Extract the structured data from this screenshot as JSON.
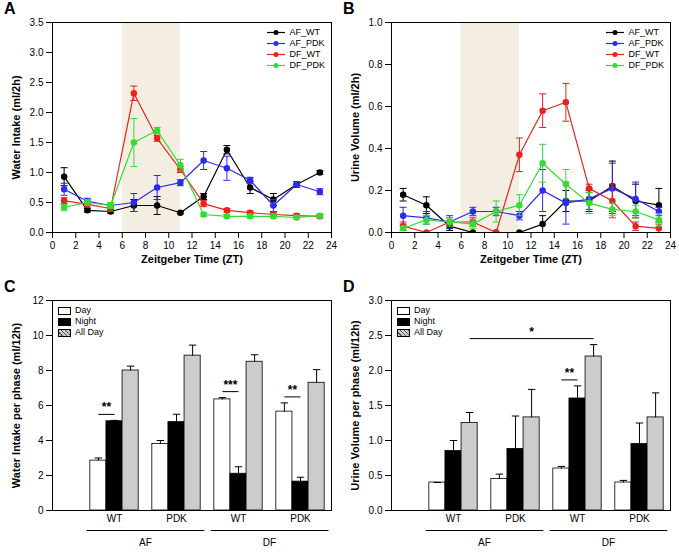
{
  "chart_data": [
    {
      "type": "line",
      "title": "A",
      "x_label": "Zeitgeber Time (ZT)",
      "y_label": "Water Intake (ml/2h)",
      "x": [
        1,
        3,
        5,
        7,
        9,
        11,
        13,
        15,
        17,
        19,
        21,
        23
      ],
      "xlim": [
        0,
        24
      ],
      "xticks": [
        0,
        2,
        4,
        6,
        8,
        10,
        12,
        14,
        16,
        18,
        20,
        22,
        24
      ],
      "ylim": [
        0,
        3.5
      ],
      "yticks": [
        {
          "value": 0,
          "label": "0.0"
        },
        0.5,
        {
          "value": 1,
          "label": "1.0"
        },
        1.5,
        {
          "value": 2,
          "label": "2.0"
        },
        2.5,
        {
          "value": 3,
          "label": "3.0"
        },
        3.5
      ],
      "shaded_region": {
        "x": [
          6,
          11
        ],
        "color": "#f4eee2"
      },
      "legend": "top-right",
      "series": [
        {
          "name": "AF_WT",
          "color": "#000000",
          "marker": "circle",
          "values": [
            0.93,
            0.37,
            0.35,
            0.45,
            0.45,
            0.33,
            0.6,
            1.38,
            0.75,
            0.55,
            0.8,
            1.0
          ],
          "errors": [
            0.15,
            0.03,
            0.03,
            0.1,
            0.15,
            0.02,
            0.05,
            0.07,
            0.1,
            0.1,
            0.05,
            0.03
          ]
        },
        {
          "name": "AF_PDK",
          "color": "#2b2bf0",
          "marker": "circle",
          "values": [
            0.72,
            0.52,
            0.45,
            0.5,
            0.75,
            0.83,
            1.2,
            1.07,
            0.87,
            0.45,
            0.8,
            0.68
          ],
          "errors": [
            0.1,
            0.05,
            0.05,
            0.15,
            0.2,
            0.05,
            0.15,
            0.2,
            0.05,
            0.1,
            0.05,
            0.05
          ]
        },
        {
          "name": "DF_WT",
          "color": "#e8231e",
          "marker": "circle",
          "values": [
            0.53,
            0.47,
            0.4,
            2.32,
            1.57,
            1.05,
            0.48,
            0.37,
            0.33,
            0.3,
            0.28,
            0.27
          ],
          "errors": [
            0.05,
            0.05,
            0.05,
            0.12,
            0.05,
            0.05,
            0.05,
            0.03,
            0.03,
            0.03,
            0.03,
            0.03
          ]
        },
        {
          "name": "DF_PDK",
          "color": "#33dd33",
          "marker": "circle",
          "values": [
            0.42,
            0.5,
            0.45,
            1.5,
            1.7,
            1.12,
            0.3,
            0.27,
            0.27,
            0.27,
            0.25,
            0.28
          ],
          "errors": [
            0.05,
            0.05,
            0.05,
            0.4,
            0.05,
            0.1,
            0.03,
            0.03,
            0.03,
            0.03,
            0.03,
            0.03
          ]
        }
      ]
    },
    {
      "type": "line",
      "title": "B",
      "x_label": "Zeitgeber Time (ZT)",
      "y_label": "Urine Volume (ml/2h)",
      "x": [
        1,
        3,
        5,
        7,
        9,
        11,
        13,
        15,
        17,
        19,
        21,
        23
      ],
      "xlim": [
        0,
        24
      ],
      "xticks": [
        0,
        2,
        4,
        6,
        8,
        10,
        12,
        14,
        16,
        18,
        20,
        22,
        24
      ],
      "ylim": [
        0,
        1
      ],
      "yticks": [
        {
          "value": 0,
          "label": "0.0"
        },
        0.2,
        0.4,
        0.6,
        0.8,
        {
          "value": 1,
          "label": "1.0"
        }
      ],
      "shaded_region": {
        "x": [
          6,
          11
        ],
        "color": "#f4eee2"
      },
      "legend": "top-right",
      "series": [
        {
          "name": "AF_WT",
          "color": "#000000",
          "marker": "circle",
          "values": [
            0.18,
            0.13,
            0.03,
            0.0,
            0.0,
            0.0,
            0.04,
            0.15,
            0.15,
            0.22,
            0.15,
            0.13
          ],
          "errors": [
            0.03,
            0.04,
            0.02,
            0,
            0,
            0,
            0.04,
            0.05,
            0.05,
            0.12,
            0.08,
            0.08
          ]
        },
        {
          "name": "AF_PDK",
          "color": "#2b2bf0",
          "marker": "circle",
          "values": [
            0.08,
            0.07,
            0.05,
            0.1,
            0.1,
            0.08,
            0.2,
            0.14,
            0.16,
            0.21,
            0.16,
            0.1
          ],
          "errors": [
            0.04,
            0.03,
            0.03,
            0.02,
            0.02,
            0.02,
            0.1,
            0.1,
            0.05,
            0.12,
            0.08,
            0.02
          ]
        },
        {
          "name": "DF_WT",
          "color": "#e8231e",
          "marker": "circle",
          "values": [
            0.03,
            0.0,
            0.05,
            0.05,
            0.0,
            0.37,
            0.58,
            0.62,
            0.21,
            0.15,
            0.03,
            0.02
          ],
          "errors": [
            0.02,
            0,
            0.02,
            0.02,
            0,
            0.08,
            0.08,
            0.09,
            0.02,
            0.08,
            0.02,
            0.02
          ]
        },
        {
          "name": "DF_PDK",
          "color": "#33dd33",
          "marker": "circle",
          "values": [
            0.02,
            0.06,
            0.05,
            0.04,
            0.1,
            0.13,
            0.33,
            0.23,
            0.14,
            0.11,
            0.1,
            0.06
          ],
          "errors": [
            0.01,
            0.02,
            0.02,
            0.02,
            0.05,
            0.05,
            0.09,
            0.07,
            0.05,
            0.03,
            0.03,
            0.03
          ]
        }
      ]
    },
    {
      "type": "bar",
      "title": "C",
      "y_label": "Water Intake per phase (ml/12h)",
      "categories": [
        "WT",
        "PDK",
        "WT",
        "PDK"
      ],
      "groups": [
        {
          "label": "AF",
          "span": [
            0,
            1
          ]
        },
        {
          "label": "DF",
          "span": [
            2,
            3
          ]
        }
      ],
      "ylim": [
        0,
        12
      ],
      "yticks": [
        0,
        2,
        4,
        6,
        8,
        10,
        12
      ],
      "legend": "top-left",
      "series": [
        {
          "name": "Day",
          "color": "#ffffff",
          "values": [
            2.85,
            3.8,
            6.35,
            5.65
          ],
          "errors": [
            0.15,
            0.2,
            0.1,
            0.5
          ]
        },
        {
          "name": "Night",
          "color": "#000000",
          "values": [
            5.1,
            5.05,
            2.1,
            1.65
          ],
          "errors": [
            0.05,
            0.45,
            0.4,
            0.25
          ]
        },
        {
          "name": "All Day",
          "color": "#cccccc",
          "line_style": "hatched",
          "values": [
            8.0,
            8.85,
            8.5,
            7.3
          ],
          "errors": [
            0.25,
            0.6,
            0.4,
            0.75
          ]
        }
      ],
      "annotations": [
        {
          "text": "**",
          "from": {
            "category": 0,
            "series": "Day"
          },
          "to": {
            "category": 0,
            "series": "Night"
          }
        },
        {
          "text": "***",
          "from": {
            "category": 2,
            "series": "Day"
          },
          "to": {
            "category": 2,
            "series": "Night"
          }
        },
        {
          "text": "**",
          "from": {
            "category": 3,
            "series": "Day"
          },
          "to": {
            "category": 3,
            "series": "Night"
          }
        }
      ]
    },
    {
      "type": "bar",
      "title": "D",
      "y_label": "Urine Volume per phase (ml/12h)",
      "categories": [
        "WT",
        "PDK",
        "WT",
        "PDK"
      ],
      "groups": [
        {
          "label": "AF",
          "span": [
            0,
            1
          ]
        },
        {
          "label": "DF",
          "span": [
            2,
            3
          ]
        }
      ],
      "ylim": [
        0,
        3
      ],
      "yticks": [
        {
          "value": 0,
          "label": "0.0"
        },
        0.5,
        {
          "value": 1,
          "label": "1.0"
        },
        1.5,
        {
          "value": 2,
          "label": "2.0"
        },
        2.5,
        {
          "value": 3,
          "label": "3.0"
        }
      ],
      "legend": "top-left",
      "series": [
        {
          "name": "Day",
          "color": "#ffffff",
          "values": [
            0.4,
            0.45,
            0.6,
            0.4
          ],
          "errors": [
            0,
            0.07,
            0.03,
            0.03
          ]
        },
        {
          "name": "Night",
          "color": "#000000",
          "values": [
            0.85,
            0.88,
            1.6,
            0.95
          ],
          "errors": [
            0.15,
            0.47,
            0.18,
            0.3
          ]
        },
        {
          "name": "All Day",
          "color": "#cccccc",
          "line_style": "hatched",
          "values": [
            1.25,
            1.33,
            2.2,
            1.33
          ],
          "errors": [
            0.15,
            0.4,
            0.17,
            0.35
          ]
        }
      ],
      "annotations": [
        {
          "text": "**",
          "from": {
            "category": 2,
            "series": "Day"
          },
          "to": {
            "category": 2,
            "series": "Night"
          }
        },
        {
          "text": "*",
          "from": {
            "category": 0,
            "series": "All Day"
          },
          "to": {
            "category": 2,
            "series": "All Day"
          }
        }
      ]
    }
  ]
}
